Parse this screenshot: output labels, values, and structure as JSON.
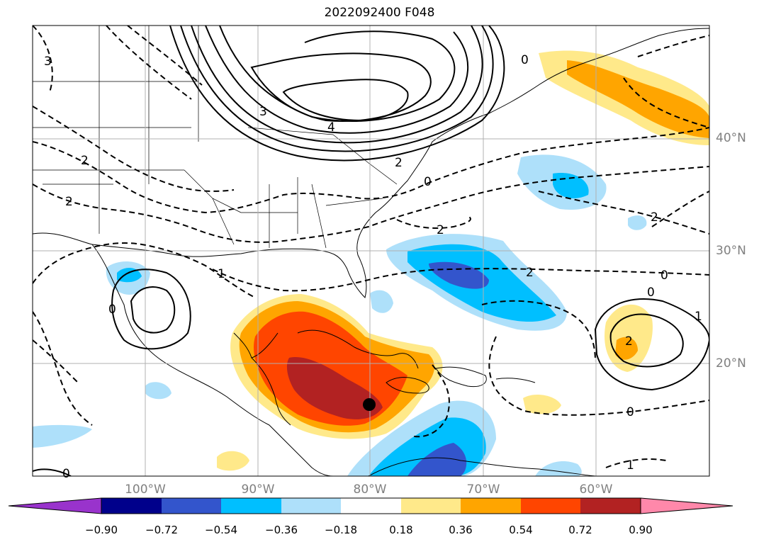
{
  "title": "2022092400 F048",
  "lat_labels": [
    "40°N",
    "30°N",
    "20°N"
  ],
  "lon_labels": [
    "100°W",
    "90°W",
    "80°W",
    "70°W",
    "60°W"
  ],
  "contour_labels": [
    "3",
    "2",
    "2",
    "4",
    "3",
    "2",
    "0",
    "0",
    "2",
    "2",
    "1",
    "0",
    "2",
    "0",
    "0",
    "1",
    "2",
    "0",
    "0",
    "1"
  ],
  "colorbar": {
    "ticks": [
      "−0.90",
      "−0.72",
      "−0.54",
      "−0.36",
      "−0.18",
      "0.18",
      "0.36",
      "0.54",
      "0.72",
      "0.90"
    ],
    "colors": [
      "#9933cc",
      "#00008b",
      "#3355cc",
      "#00bfff",
      "#aee0fa",
      "#ffffff",
      "#ffe98a",
      "#ffa500",
      "#ff4500",
      "#b22222",
      "#ff88aa"
    ]
  },
  "colors": {
    "ocean_fill": "#ffffff",
    "gridline": "#b0b0b0",
    "coast": "#000000",
    "label_gray": "#808080"
  },
  "markers": [
    {
      "name": "storm-center",
      "lon": -80,
      "lat": 16
    }
  ]
}
